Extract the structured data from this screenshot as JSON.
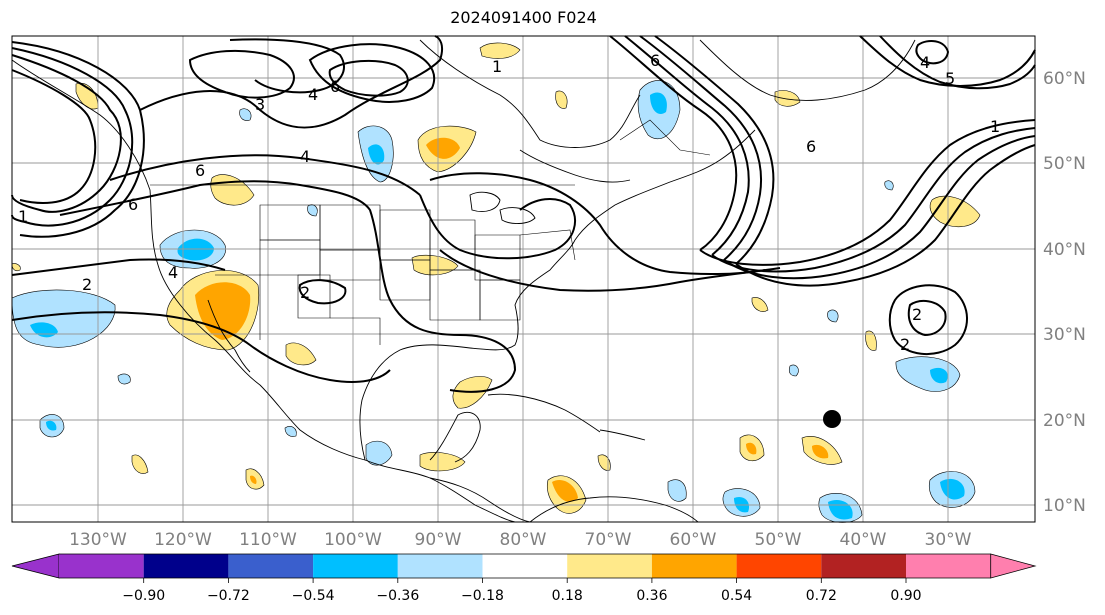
{
  "title": "2024091400 F024",
  "map": {
    "lon_range": [
      -140,
      -20
    ],
    "lat_range": [
      8,
      65
    ],
    "lon_ticks": [
      "130°W",
      "120°W",
      "110°W",
      "100°W",
      "90°W",
      "80°W",
      "70°W",
      "60°W",
      "50°W",
      "40°W",
      "30°W"
    ],
    "lat_ticks": [
      "60°N",
      "50°N",
      "40°N",
      "30°N",
      "20°N",
      "10°N"
    ],
    "marker": {
      "lon": -44,
      "lat": 20,
      "color": "#000000"
    }
  },
  "contour_labels": [
    "4",
    "3",
    "4",
    "6",
    "6",
    "2",
    "1",
    "4",
    "6",
    "2",
    "1",
    "6",
    "6",
    "5",
    "4",
    "1",
    "2",
    "2"
  ],
  "colorbar": {
    "colors": [
      "#9932cc",
      "#00008b",
      "#3a5fcd",
      "#00bfff",
      "#b0e2ff",
      "#ffffff",
      "#ffe98a",
      "#ffa500",
      "#ff4500",
      "#b22222",
      "#ff7fae"
    ],
    "ticks": [
      "−0.90",
      "−0.72",
      "−0.54",
      "−0.36",
      "−0.18",
      "0.18",
      "0.36",
      "0.54",
      "0.72",
      "0.90"
    ]
  },
  "colors": {
    "light_blue": "#b0e2ff",
    "blue": "#00bfff",
    "yellow": "#ffe98a",
    "orange": "#ffa500"
  }
}
